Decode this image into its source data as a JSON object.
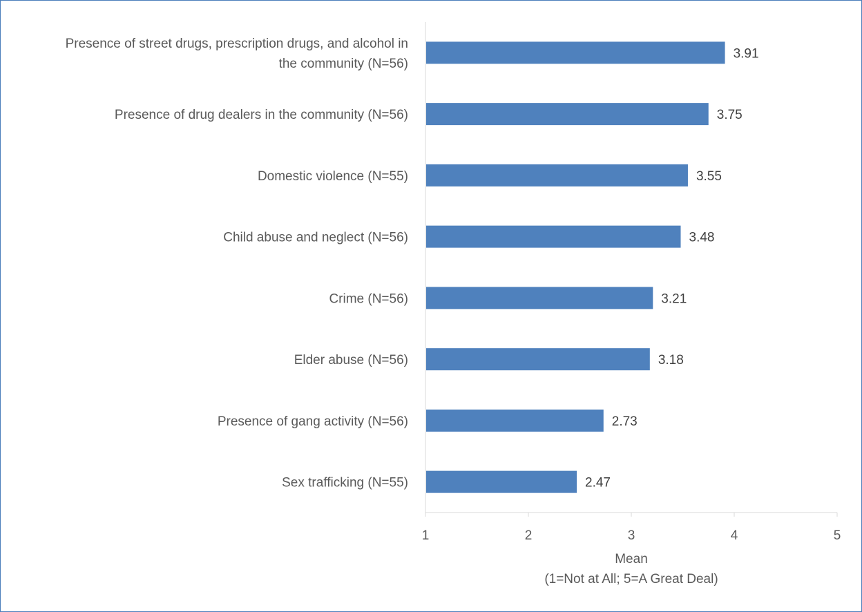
{
  "chart_data": {
    "type": "bar",
    "orientation": "horizontal",
    "categories": [
      [
        "Presence of street drugs, prescription drugs, and alcohol in",
        "the community  (N=56)"
      ],
      [
        "Presence of drug dealers in the community  (N=56)"
      ],
      [
        "Domestic violence  (N=55)"
      ],
      [
        "Child abuse and neglect (N=56)"
      ],
      [
        "Crime  (N=56)"
      ],
      [
        "Elder abuse  (N=56)"
      ],
      [
        "Presence of gang activity  (N=56)"
      ],
      [
        "Sex trafficking  (N=55)"
      ]
    ],
    "values": [
      3.91,
      3.75,
      3.55,
      3.48,
      3.21,
      3.18,
      2.73,
      2.47
    ],
    "value_labels": [
      "3.91",
      "3.75",
      "3.55",
      "3.48",
      "3.21",
      "3.18",
      "2.73",
      "2.47"
    ],
    "xlim": [
      1,
      5
    ],
    "xticks": [
      "1",
      "2",
      "3",
      "4",
      "5"
    ],
    "xlabel": [
      "Mean",
      "(1=Not at All; 5=A Great Deal)"
    ],
    "ylabel": "",
    "title": "",
    "grid": false,
    "bar_color": "#4f81bd",
    "border_color": "#4a7ebb"
  }
}
